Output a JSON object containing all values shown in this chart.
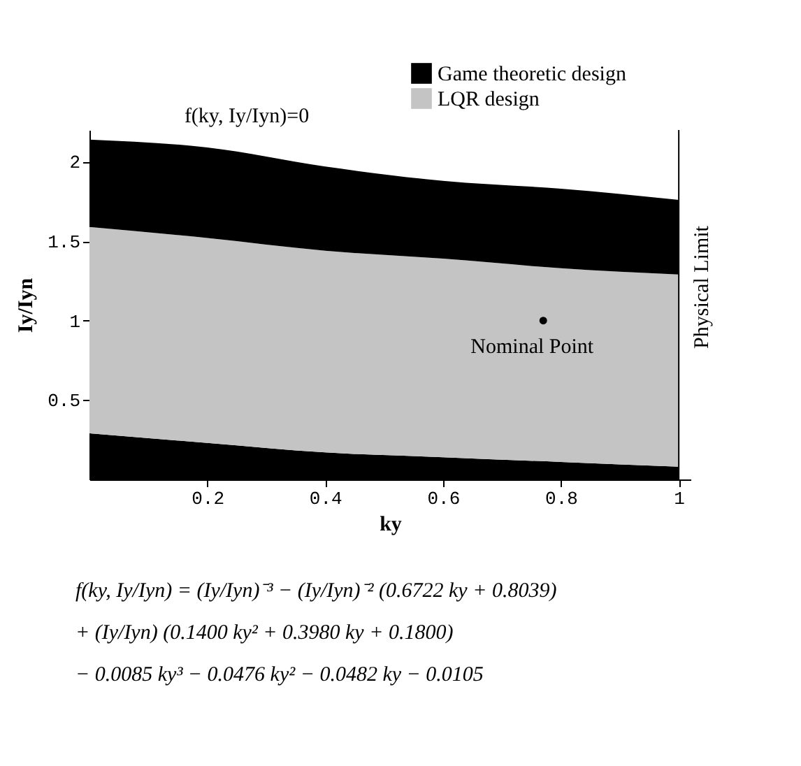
{
  "chart_data": {
    "type": "area",
    "stacked": true,
    "xlabel": "ky",
    "ylabel": "Iy/Iyn",
    "x": [
      0,
      0.2,
      0.4,
      0.6,
      0.8,
      1
    ],
    "series": [
      {
        "name": "Game theoretic design",
        "color": "#000000",
        "values": [
          0.29,
          0.23,
          0.17,
          0.14,
          0.11,
          0.08
        ]
      },
      {
        "name": "LQR design",
        "color": "#c4c4c4",
        "values": [
          1.3,
          1.29,
          1.27,
          1.25,
          1.22,
          1.21
        ]
      },
      {
        "color": "#000000",
        "values": [
          0.55,
          0.57,
          0.53,
          0.49,
          0.5,
          0.47
        ]
      },
      {
        "type": "scatter",
        "color": "#000000",
        "marker": "circle",
        "x": [
          0.77
        ],
        "values": [
          1.0
        ]
      }
    ],
    "xlim": [
      0,
      1.02
    ],
    "ylim": [
      0,
      2.2
    ],
    "xticks": [
      0.2,
      0.4,
      0.6,
      0.8,
      1
    ],
    "yticks": [
      0.5,
      1,
      1.5,
      2
    ],
    "grid": false,
    "legend": "top right",
    "ref_lines": [
      {
        "axis": "x",
        "value": 1,
        "label": "Physical Limit",
        "color": "#000000"
      }
    ],
    "annotations": [
      {
        "text": "f(ky, Iy/Iyn)=0",
        "x": 0.09,
        "y": 2.1
      },
      {
        "text": "Nominal Point",
        "x": 0.77,
        "y": 1.0
      },
      "f(ky, Iy/Iyn) = (Iy/Iyn)⁻³ − (Iy/Iyn)⁻² (0.6722 ky + 0.8039)",
      "+ (Iy/Iyn) (0.1400 ky² + 0.3980 ky + 0.1800)",
      "− 0.0085 ky³ − 0.0476 ky² − 0.0482 ky − 0.0105"
    ]
  }
}
